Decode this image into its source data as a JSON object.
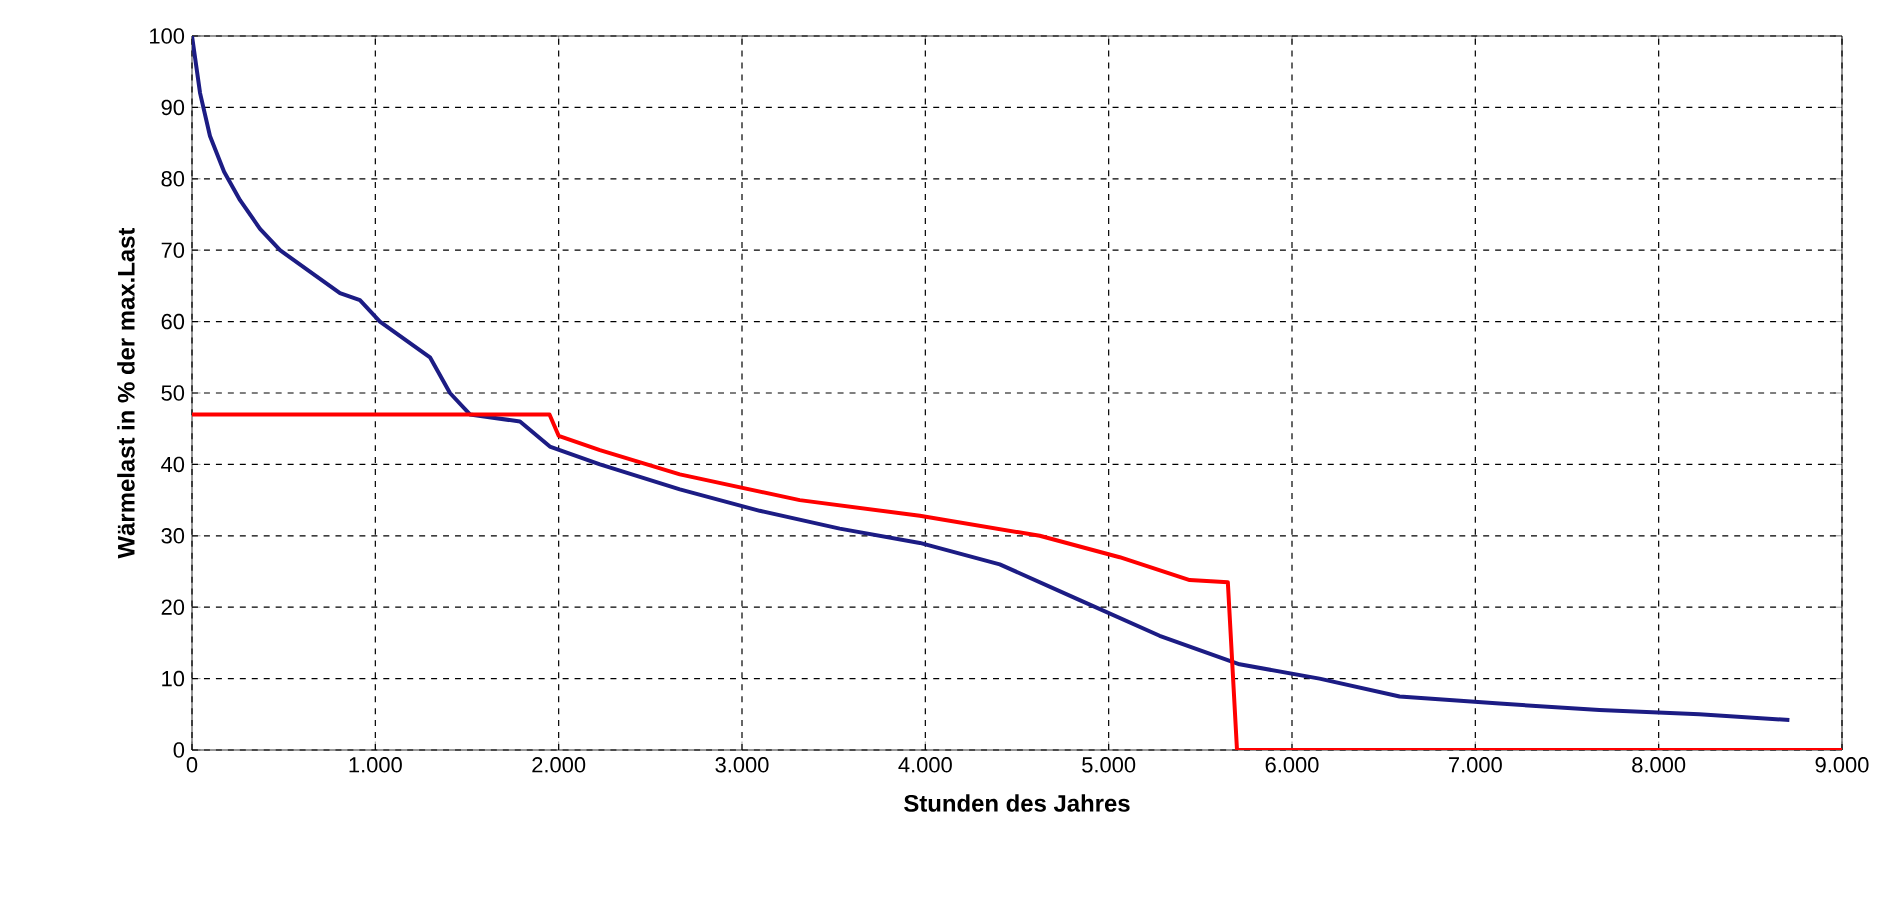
{
  "chart_data": {
    "type": "line",
    "xlabel": "Stunden des Jahres",
    "ylabel": "Wärmelast in % der max.Last",
    "xlim": [
      0,
      9000
    ],
    "ylim": [
      0,
      100
    ],
    "xticks": [
      0,
      {
        "value": 1000,
        "label": "1.000"
      },
      {
        "value": 2000,
        "label": "2.000"
      },
      {
        "value": 3000,
        "label": "3.000"
      },
      {
        "value": 4000,
        "label": "4.000"
      },
      {
        "value": 5000,
        "label": "5.000"
      },
      {
        "value": 6000,
        "label": "6.000"
      },
      {
        "value": 7000,
        "label": "7.000"
      },
      {
        "value": 8000,
        "label": "8.000"
      },
      {
        "value": 9000,
        "label": "9.000"
      }
    ],
    "yticks": [
      0,
      10,
      20,
      30,
      40,
      50,
      60,
      70,
      80,
      90,
      100
    ],
    "grid": true,
    "marker": "none",
    "line_style": "solid",
    "series": [
      {
        "color": "#1c1c84",
        "x": [
          0,
          44,
          98,
          175,
          262,
          371,
          480,
          643,
          807,
          916,
          1025,
          1189,
          1298,
          1407,
          1516,
          1789,
          1952,
          2225,
          2661,
          3097,
          3533,
          3970,
          4406,
          4842,
          5278,
          5714,
          6150,
          6587,
          7132,
          7677,
          8222,
          8713
        ],
        "values": [
          100,
          92,
          86,
          81,
          77,
          73,
          70,
          67,
          64,
          63,
          60,
          57,
          55,
          50,
          47,
          46,
          42.5,
          40,
          36.5,
          33.5,
          31,
          29,
          26,
          21,
          16,
          12,
          10,
          7.5,
          6.5,
          5.6,
          5,
          4.2
        ]
      },
      {
        "color": "#ff0000",
        "x": [
          0,
          1950,
          2000,
          2225,
          2661,
          3315,
          3970,
          4624,
          5060,
          5442,
          5650,
          5700,
          9000
        ],
        "values": [
          47,
          47,
          44,
          42,
          38.6,
          35,
          32.8,
          30,
          27,
          23.8,
          23.5,
          0,
          0
        ]
      }
    ]
  }
}
